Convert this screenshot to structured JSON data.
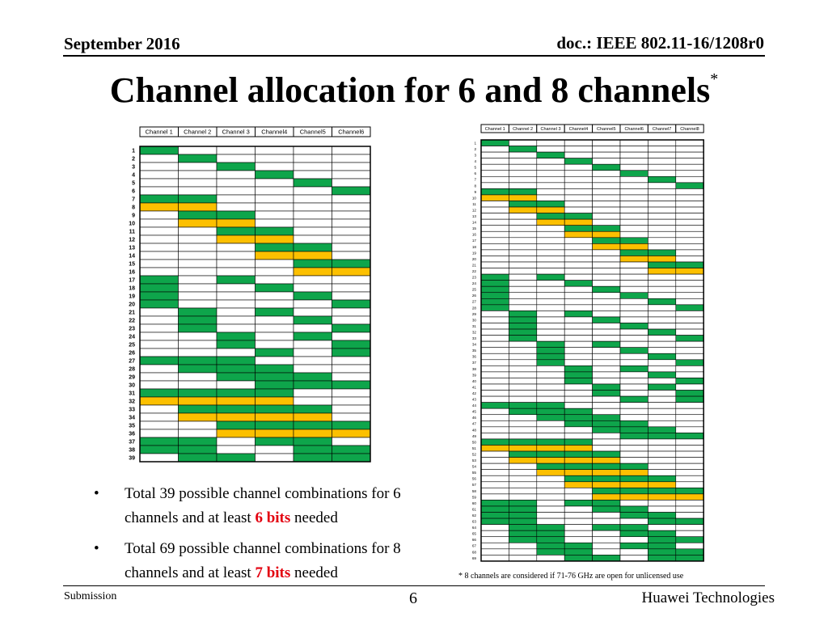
{
  "header": {
    "date": "September 2016",
    "doc_id": "doc.: IEEE 802.11-16/1208r0"
  },
  "title": {
    "text": "Channel allocation for 6 and 8 channels",
    "footnote_mark": "*"
  },
  "colors": {
    "green": "#0ea54b",
    "yellow": "#fcc000",
    "border": "#000000"
  },
  "table6": {
    "headers": [
      "Channel 1",
      "Channel 2",
      "Channel 3",
      "Channel4",
      "Channel5",
      "Channel6"
    ],
    "rows": [
      {
        "n": "1",
        "c": "G....."
      },
      {
        "n": "2",
        "c": ".G...."
      },
      {
        "n": "3",
        "c": "..G..."
      },
      {
        "n": "4",
        "c": "...G.."
      },
      {
        "n": "5",
        "c": "....G."
      },
      {
        "n": "6",
        "c": ".....G"
      },
      {
        "n": "7",
        "c": "GG...."
      },
      {
        "n": "8",
        "c": "YY...."
      },
      {
        "n": "9",
        "c": ".GG..."
      },
      {
        "n": "10",
        "c": ".YY..."
      },
      {
        "n": "11",
        "c": "..GG.."
      },
      {
        "n": "12",
        "c": "..YY.."
      },
      {
        "n": "13",
        "c": "...GG."
      },
      {
        "n": "14",
        "c": "...YY."
      },
      {
        "n": "15",
        "c": "....GG"
      },
      {
        "n": "16",
        "c": "....YY"
      },
      {
        "n": "17",
        "c": "G.G..."
      },
      {
        "n": "18",
        "c": "G..G.."
      },
      {
        "n": "19",
        "c": "G...G."
      },
      {
        "n": "20",
        "c": "G....G"
      },
      {
        "n": "21",
        "c": ".G.G.."
      },
      {
        "n": "22",
        "c": ".G..G."
      },
      {
        "n": "23",
        "c": ".G...G"
      },
      {
        "n": "24",
        "c": "..G.G."
      },
      {
        "n": "25",
        "c": "..G..G"
      },
      {
        "n": "26",
        "c": "...G.G"
      },
      {
        "n": "27",
        "c": "GGG..."
      },
      {
        "n": "28",
        "c": ".GGG.."
      },
      {
        "n": "29",
        "c": "..GGG."
      },
      {
        "n": "30",
        "c": "...GGG"
      },
      {
        "n": "31",
        "c": "GGGG.."
      },
      {
        "n": "32",
        "c": "YYYY.."
      },
      {
        "n": "33",
        "c": ".GGGG."
      },
      {
        "n": "34",
        "c": ".YYYY."
      },
      {
        "n": "35",
        "c": "..GGGG"
      },
      {
        "n": "36",
        "c": "..YYYY"
      },
      {
        "n": "37",
        "c": "GG.GG."
      },
      {
        "n": "38",
        "c": "GG..GG"
      },
      {
        "n": "39",
        "c": ".GG.GG"
      }
    ]
  },
  "table8": {
    "headers": [
      "Channel 1",
      "Channel 2",
      "Channel 3",
      "Channel4",
      "Channel5",
      "Channel6",
      "Channel7",
      "Channel8"
    ],
    "rows": [
      {
        "n": "1",
        "c": "G......."
      },
      {
        "n": "2",
        "c": ".G......"
      },
      {
        "n": "3",
        "c": "..G....."
      },
      {
        "n": "4",
        "c": "...G...."
      },
      {
        "n": "5",
        "c": "....G..."
      },
      {
        "n": "6",
        "c": ".....G.."
      },
      {
        "n": "7",
        "c": "......G."
      },
      {
        "n": "8",
        "c": ".......G"
      },
      {
        "n": "9",
        "c": "GG......"
      },
      {
        "n": "10",
        "c": "YY......"
      },
      {
        "n": "11",
        "c": ".GG....."
      },
      {
        "n": "12",
        "c": ".YY....."
      },
      {
        "n": "13",
        "c": "..GG...."
      },
      {
        "n": "14",
        "c": "..YY...."
      },
      {
        "n": "15",
        "c": "...GG..."
      },
      {
        "n": "16",
        "c": "...YY..."
      },
      {
        "n": "17",
        "c": "....GG.."
      },
      {
        "n": "18",
        "c": "....YY.."
      },
      {
        "n": "19",
        "c": ".....GG."
      },
      {
        "n": "20",
        "c": ".....YY."
      },
      {
        "n": "21",
        "c": "......GG"
      },
      {
        "n": "22",
        "c": "......YY"
      },
      {
        "n": "23",
        "c": "G.G....."
      },
      {
        "n": "24",
        "c": "G..G...."
      },
      {
        "n": "25",
        "c": "G...G..."
      },
      {
        "n": "26",
        "c": "G....G.."
      },
      {
        "n": "27",
        "c": "G.....G."
      },
      {
        "n": "28",
        "c": "G......G"
      },
      {
        "n": "29",
        "c": ".G.G...."
      },
      {
        "n": "30",
        "c": ".G..G..."
      },
      {
        "n": "31",
        "c": ".G...G.."
      },
      {
        "n": "32",
        "c": ".G....G."
      },
      {
        "n": "33",
        "c": ".G.....G"
      },
      {
        "n": "34",
        "c": "..G.G..."
      },
      {
        "n": "35",
        "c": "..G..G.."
      },
      {
        "n": "36",
        "c": "..G...G."
      },
      {
        "n": "37",
        "c": "..G....G"
      },
      {
        "n": "38",
        "c": "...G.G.."
      },
      {
        "n": "39",
        "c": "...G..G."
      },
      {
        "n": "40",
        "c": "...G...G"
      },
      {
        "n": "41",
        "c": "....G.G."
      },
      {
        "n": "42",
        "c": "....G..G"
      },
      {
        "n": "43",
        "c": ".....G.G"
      },
      {
        "n": "44",
        "c": "GGG....."
      },
      {
        "n": "45",
        "c": ".GGG...."
      },
      {
        "n": "46",
        "c": "..GGG..."
      },
      {
        "n": "47",
        "c": "...GGG.."
      },
      {
        "n": "48",
        "c": "....GGG."
      },
      {
        "n": "49",
        "c": ".....GGG"
      },
      {
        "n": "50",
        "c": "GGGG...."
      },
      {
        "n": "51",
        "c": "YYYY...."
      },
      {
        "n": "52",
        "c": ".GGGG..."
      },
      {
        "n": "53",
        "c": ".YYYY..."
      },
      {
        "n": "54",
        "c": "..GGGG.."
      },
      {
        "n": "55",
        "c": "..YYYY.."
      },
      {
        "n": "56",
        "c": "...GGGG."
      },
      {
        "n": "57",
        "c": "...YYYY."
      },
      {
        "n": "58",
        "c": "....GGGG"
      },
      {
        "n": "59",
        "c": "....YYYY"
      },
      {
        "n": "60",
        "c": "GG.GG..."
      },
      {
        "n": "61",
        "c": "GG..GG.."
      },
      {
        "n": "62",
        "c": "GG...GG."
      },
      {
        "n": "63",
        "c": "GG....GG"
      },
      {
        "n": "64",
        "c": ".GG.GG.."
      },
      {
        "n": "65",
        "c": ".GG..GG."
      },
      {
        "n": "66",
        "c": ".GG...GG"
      },
      {
        "n": "67",
        "c": "..GG.GG."
      },
      {
        "n": "68",
        "c": "..GG..GG"
      },
      {
        "n": "69",
        "c": "...GG.GG"
      }
    ]
  },
  "bullets": [
    {
      "before": "Total 39 possible channel combinations for 6 channels and at least ",
      "highlight": "6 bits",
      "after": " needed"
    },
    {
      "before": "Total 69 possible channel combinations for 8 channels and at least ",
      "highlight": "7 bits",
      "after": " needed"
    }
  ],
  "footnote": "*  8 channels are considered if 71-76 GHz are open for unlicensed use",
  "footer": {
    "left": "Submission",
    "page": "6",
    "right": "Huawei Technologies"
  }
}
